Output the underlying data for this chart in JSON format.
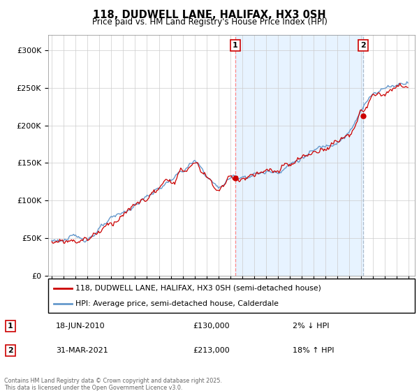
{
  "title": "118, DUDWELL LANE, HALIFAX, HX3 0SH",
  "subtitle": "Price paid vs. HM Land Registry's House Price Index (HPI)",
  "legend_line1": "118, DUDWELL LANE, HALIFAX, HX3 0SH (semi-detached house)",
  "legend_line2": "HPI: Average price, semi-detached house, Calderdale",
  "annotation1_label": "1",
  "annotation1_date": "18-JUN-2010",
  "annotation1_price": "£130,000",
  "annotation1_hpi": "2% ↓ HPI",
  "annotation1_year": 2010,
  "annotation1_month": 5,
  "annotation1_value": 130000,
  "annotation2_label": "2",
  "annotation2_date": "31-MAR-2021",
  "annotation2_price": "£213,000",
  "annotation2_hpi": "18% ↑ HPI",
  "annotation2_year": 2021,
  "annotation2_month": 2,
  "annotation2_value": 213000,
  "footer": "Contains HM Land Registry data © Crown copyright and database right 2025.\nThis data is licensed under the Open Government Licence v3.0.",
  "house_color": "#cc0000",
  "hpi_color": "#6699cc",
  "vline1_color": "#ff8888",
  "vline2_color": "#aabbcc",
  "shade_color": "#ddeeff",
  "ylim": [
    0,
    320000
  ],
  "yticks": [
    0,
    50000,
    100000,
    150000,
    200000,
    250000,
    300000
  ],
  "ytick_labels": [
    "£0",
    "£50K",
    "£100K",
    "£150K",
    "£200K",
    "£250K",
    "£300K"
  ],
  "start_year": 1995,
  "end_year": 2025,
  "xmin": 1994.7,
  "xmax": 2025.5
}
